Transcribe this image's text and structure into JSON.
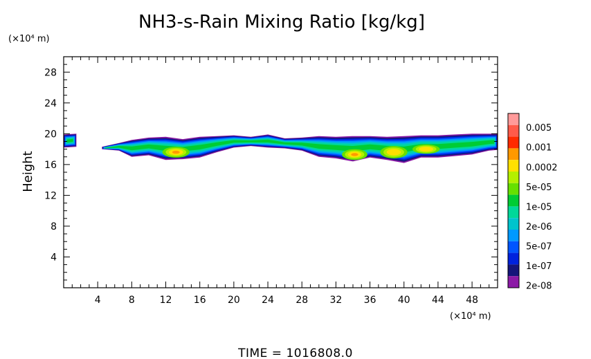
{
  "chart_data": {
    "type": "heatmap",
    "title": "NH3-s-Rain Mixing Ratio [kg/kg]",
    "ylabel": "Height",
    "x_unit": "(×10⁴ m)",
    "y_unit": "(×10⁴ m)",
    "xlim": [
      0,
      51
    ],
    "ylim": [
      0,
      30
    ],
    "x_ticks": [
      "4",
      "8",
      "12",
      "16",
      "20",
      "24",
      "28",
      "32",
      "36",
      "40",
      "44",
      "48"
    ],
    "y_ticks": [
      "4",
      "8",
      "12",
      "16",
      "20",
      "24",
      "28"
    ],
    "grid": false,
    "colorbar": {
      "labels": [
        "0.005",
        "0.001",
        "0.0002",
        "5e-05",
        "1e-05",
        "2e-06",
        "5e-07",
        "1e-07",
        "2e-08"
      ],
      "colors": [
        "#ff9a9a",
        "#ff5a4a",
        "#ff2a00",
        "#ff9900",
        "#ffe000",
        "#b4f000",
        "#66e000",
        "#00cc33",
        "#00d899",
        "#00c4cc",
        "#0099ff",
        "#0055ff",
        "#0022dd",
        "#15157a",
        "#8c1aa6"
      ],
      "note": ""
    },
    "region_shape": [
      {
        "x": 0.0,
        "top": 19.9,
        "bottom": 18.2
      },
      {
        "x": 1.5,
        "top": 20.0,
        "bottom": 18.3
      },
      {
        "x": 2.2,
        "top": null,
        "bottom": null
      },
      {
        "x": 4.5,
        "top": 18.3,
        "bottom": 18.0
      },
      {
        "x": 6.5,
        "top": 18.8,
        "bottom": 17.8
      },
      {
        "x": 8.0,
        "top": 19.2,
        "bottom": 17.0
      },
      {
        "x": 10.0,
        "top": 19.5,
        "bottom": 17.2
      },
      {
        "x": 12.0,
        "top": 19.6,
        "bottom": 16.6
      },
      {
        "x": 14.0,
        "top": 19.3,
        "bottom": 16.7
      },
      {
        "x": 16.0,
        "top": 19.6,
        "bottom": 16.9
      },
      {
        "x": 18.0,
        "top": 19.7,
        "bottom": 17.6
      },
      {
        "x": 20.0,
        "top": 19.8,
        "bottom": 18.2
      },
      {
        "x": 22.0,
        "top": 19.6,
        "bottom": 18.4
      },
      {
        "x": 24.0,
        "top": 19.9,
        "bottom": 18.2
      },
      {
        "x": 26.0,
        "top": 19.4,
        "bottom": 18.1
      },
      {
        "x": 28.0,
        "top": 19.5,
        "bottom": 17.8
      },
      {
        "x": 30.0,
        "top": 19.7,
        "bottom": 17.0
      },
      {
        "x": 32.0,
        "top": 19.6,
        "bottom": 16.8
      },
      {
        "x": 34.0,
        "top": 19.7,
        "bottom": 16.4
      },
      {
        "x": 36.0,
        "top": 19.7,
        "bottom": 16.9
      },
      {
        "x": 38.0,
        "top": 19.6,
        "bottom": 16.6
      },
      {
        "x": 40.0,
        "top": 19.7,
        "bottom": 16.2
      },
      {
        "x": 42.0,
        "top": 19.8,
        "bottom": 16.9
      },
      {
        "x": 44.0,
        "top": 19.8,
        "bottom": 16.9
      },
      {
        "x": 46.0,
        "top": 19.9,
        "bottom": 17.1
      },
      {
        "x": 48.0,
        "top": 20.0,
        "bottom": 17.3
      },
      {
        "x": 50.0,
        "top": 20.0,
        "bottom": 17.8
      },
      {
        "x": 51.0,
        "top": 20.0,
        "bottom": 17.9
      }
    ],
    "hot_spots": [
      {
        "x": 13.2,
        "y": 17.6,
        "rx": 1.6,
        "ry": 0.7,
        "level": 4
      },
      {
        "x": 34.2,
        "y": 17.3,
        "rx": 1.5,
        "ry": 0.7,
        "level": 4
      },
      {
        "x": 38.8,
        "y": 17.6,
        "rx": 1.6,
        "ry": 0.8,
        "level": 3
      },
      {
        "x": 42.6,
        "y": 18.0,
        "rx": 1.6,
        "ry": 0.6,
        "level": 3
      }
    ]
  },
  "time_label": "TIME  =  1016808.0"
}
